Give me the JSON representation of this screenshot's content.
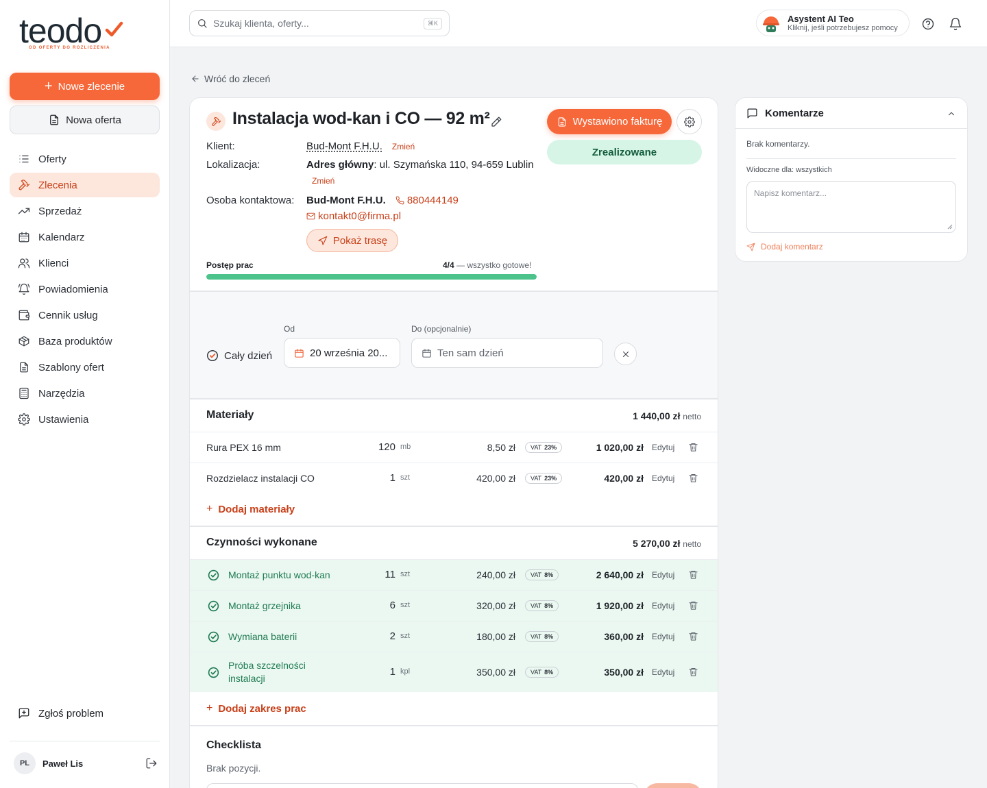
{
  "brand": {
    "logo_text": "teodo",
    "tagline": "OD OFERTY DO ROZLICZENIA",
    "accent": "#f6683a"
  },
  "sidebar": {
    "new_order_label": "Nowe zlecenie",
    "new_offer_label": "Nowa oferta",
    "items": [
      {
        "label": "Oferty",
        "icon": "list-icon"
      },
      {
        "label": "Zlecenia",
        "icon": "hammer-icon",
        "active": true
      },
      {
        "label": "Sprzedaż",
        "icon": "trend-icon"
      },
      {
        "label": "Kalendarz",
        "icon": "calendar-icon"
      },
      {
        "label": "Klienci",
        "icon": "users-icon"
      },
      {
        "label": "Powiadomienia",
        "icon": "bell-icon"
      },
      {
        "label": "Cennik usług",
        "icon": "wallet-icon"
      },
      {
        "label": "Baza produktów",
        "icon": "box-icon"
      },
      {
        "label": "Szablony ofert",
        "icon": "document-icon"
      },
      {
        "label": "Narzędzia",
        "icon": "calculator-icon"
      },
      {
        "label": "Ustawienia",
        "icon": "gear-icon"
      }
    ],
    "report_label": "Zgłoś problem",
    "user": {
      "initials": "PL",
      "name": "Paweł Lis"
    }
  },
  "topbar": {
    "search_placeholder": "Szukaj klienta, oferty...",
    "search_shortcut": "⌘K",
    "assistant_title": "Asystent AI Teo",
    "assistant_subtitle": "Kliknij, jeśli potrzebujesz pomocy"
  },
  "back_label": "Wróć do zleceń",
  "order": {
    "title": "Instalacja wod-kan i CO — 92 m²",
    "invoice_button": "Wystawiono fakturę",
    "status": "Zrealizowane",
    "status_color": "#d6f5e6",
    "client_label": "Klient:",
    "client_value": "Bud-Mont F.H.U.",
    "change_label": "Zmień",
    "location_label": "Lokalizacja:",
    "location_main": "Adres główny",
    "location_value": ": ul. Szymańska 110, 94-659 Lublin",
    "contact_label": "Osoba kontaktowa:",
    "contact_name": "Bud-Mont F.H.U.",
    "contact_phone": "880444149",
    "contact_email": "kontakt0@firma.pl",
    "route_button": "Pokaż trasę",
    "progress_label": "Postęp prac",
    "progress_count": "4/4",
    "progress_note": " — wszystko gotowe!",
    "progress_fraction": 1.0,
    "progress_color": "#4cc38a"
  },
  "dates": {
    "all_day_label": "Cały dzień",
    "from_label": "Od",
    "from_value": "20 września 20...",
    "to_label": "Do (opcjonalnie)",
    "to_placeholder": "Ten sam dzień"
  },
  "materials": {
    "title": "Materiały",
    "sum": "1 440,00 zł",
    "sum_suffix": "netto",
    "add_label": "Dodaj materiały",
    "rows": [
      {
        "name": "Rura PEX 16 mm",
        "qty": "120",
        "unit": "mb",
        "price": "8,50 zł",
        "vat_label": "VAT",
        "vat": "23%",
        "total": "1 020,00 zł",
        "edit": "Edytuj"
      },
      {
        "name": "Rozdzielacz instalacji CO",
        "qty": "1",
        "unit": "szt",
        "price": "420,00 zł",
        "vat_label": "VAT",
        "vat": "23%",
        "total": "420,00 zł",
        "edit": "Edytuj"
      }
    ]
  },
  "works": {
    "title": "Czynności wykonane",
    "sum": "5 270,00 zł",
    "sum_suffix": "netto",
    "add_label": "Dodaj zakres prac",
    "rows": [
      {
        "name": "Montaż punktu wod-kan",
        "qty": "11",
        "unit": "szt",
        "price": "240,00 zł",
        "vat_label": "VAT",
        "vat": "8%",
        "total": "2 640,00 zł",
        "edit": "Edytuj"
      },
      {
        "name": "Montaż grzejnika",
        "qty": "6",
        "unit": "szt",
        "price": "320,00 zł",
        "vat_label": "VAT",
        "vat": "8%",
        "total": "1 920,00 zł",
        "edit": "Edytuj"
      },
      {
        "name": "Wymiana baterii",
        "qty": "2",
        "unit": "szt",
        "price": "180,00 zł",
        "vat_label": "VAT",
        "vat": "8%",
        "total": "360,00 zł",
        "edit": "Edytuj"
      },
      {
        "name": "Próba szczelności\ninstalacji",
        "qty": "1",
        "unit": "kpl",
        "price": "350,00 zł",
        "vat_label": "VAT",
        "vat": "8%",
        "total": "350,00 zł",
        "edit": "Edytuj"
      }
    ]
  },
  "checklist": {
    "title": "Checklista",
    "empty": "Brak pozycji."
  },
  "comments": {
    "title": "Komentarze",
    "empty": "Brak komentarzy.",
    "visibility": "Widoczne dla: wszystkich",
    "placeholder": "Napisz komentarz...",
    "add_label": "Dodaj komentarz"
  }
}
